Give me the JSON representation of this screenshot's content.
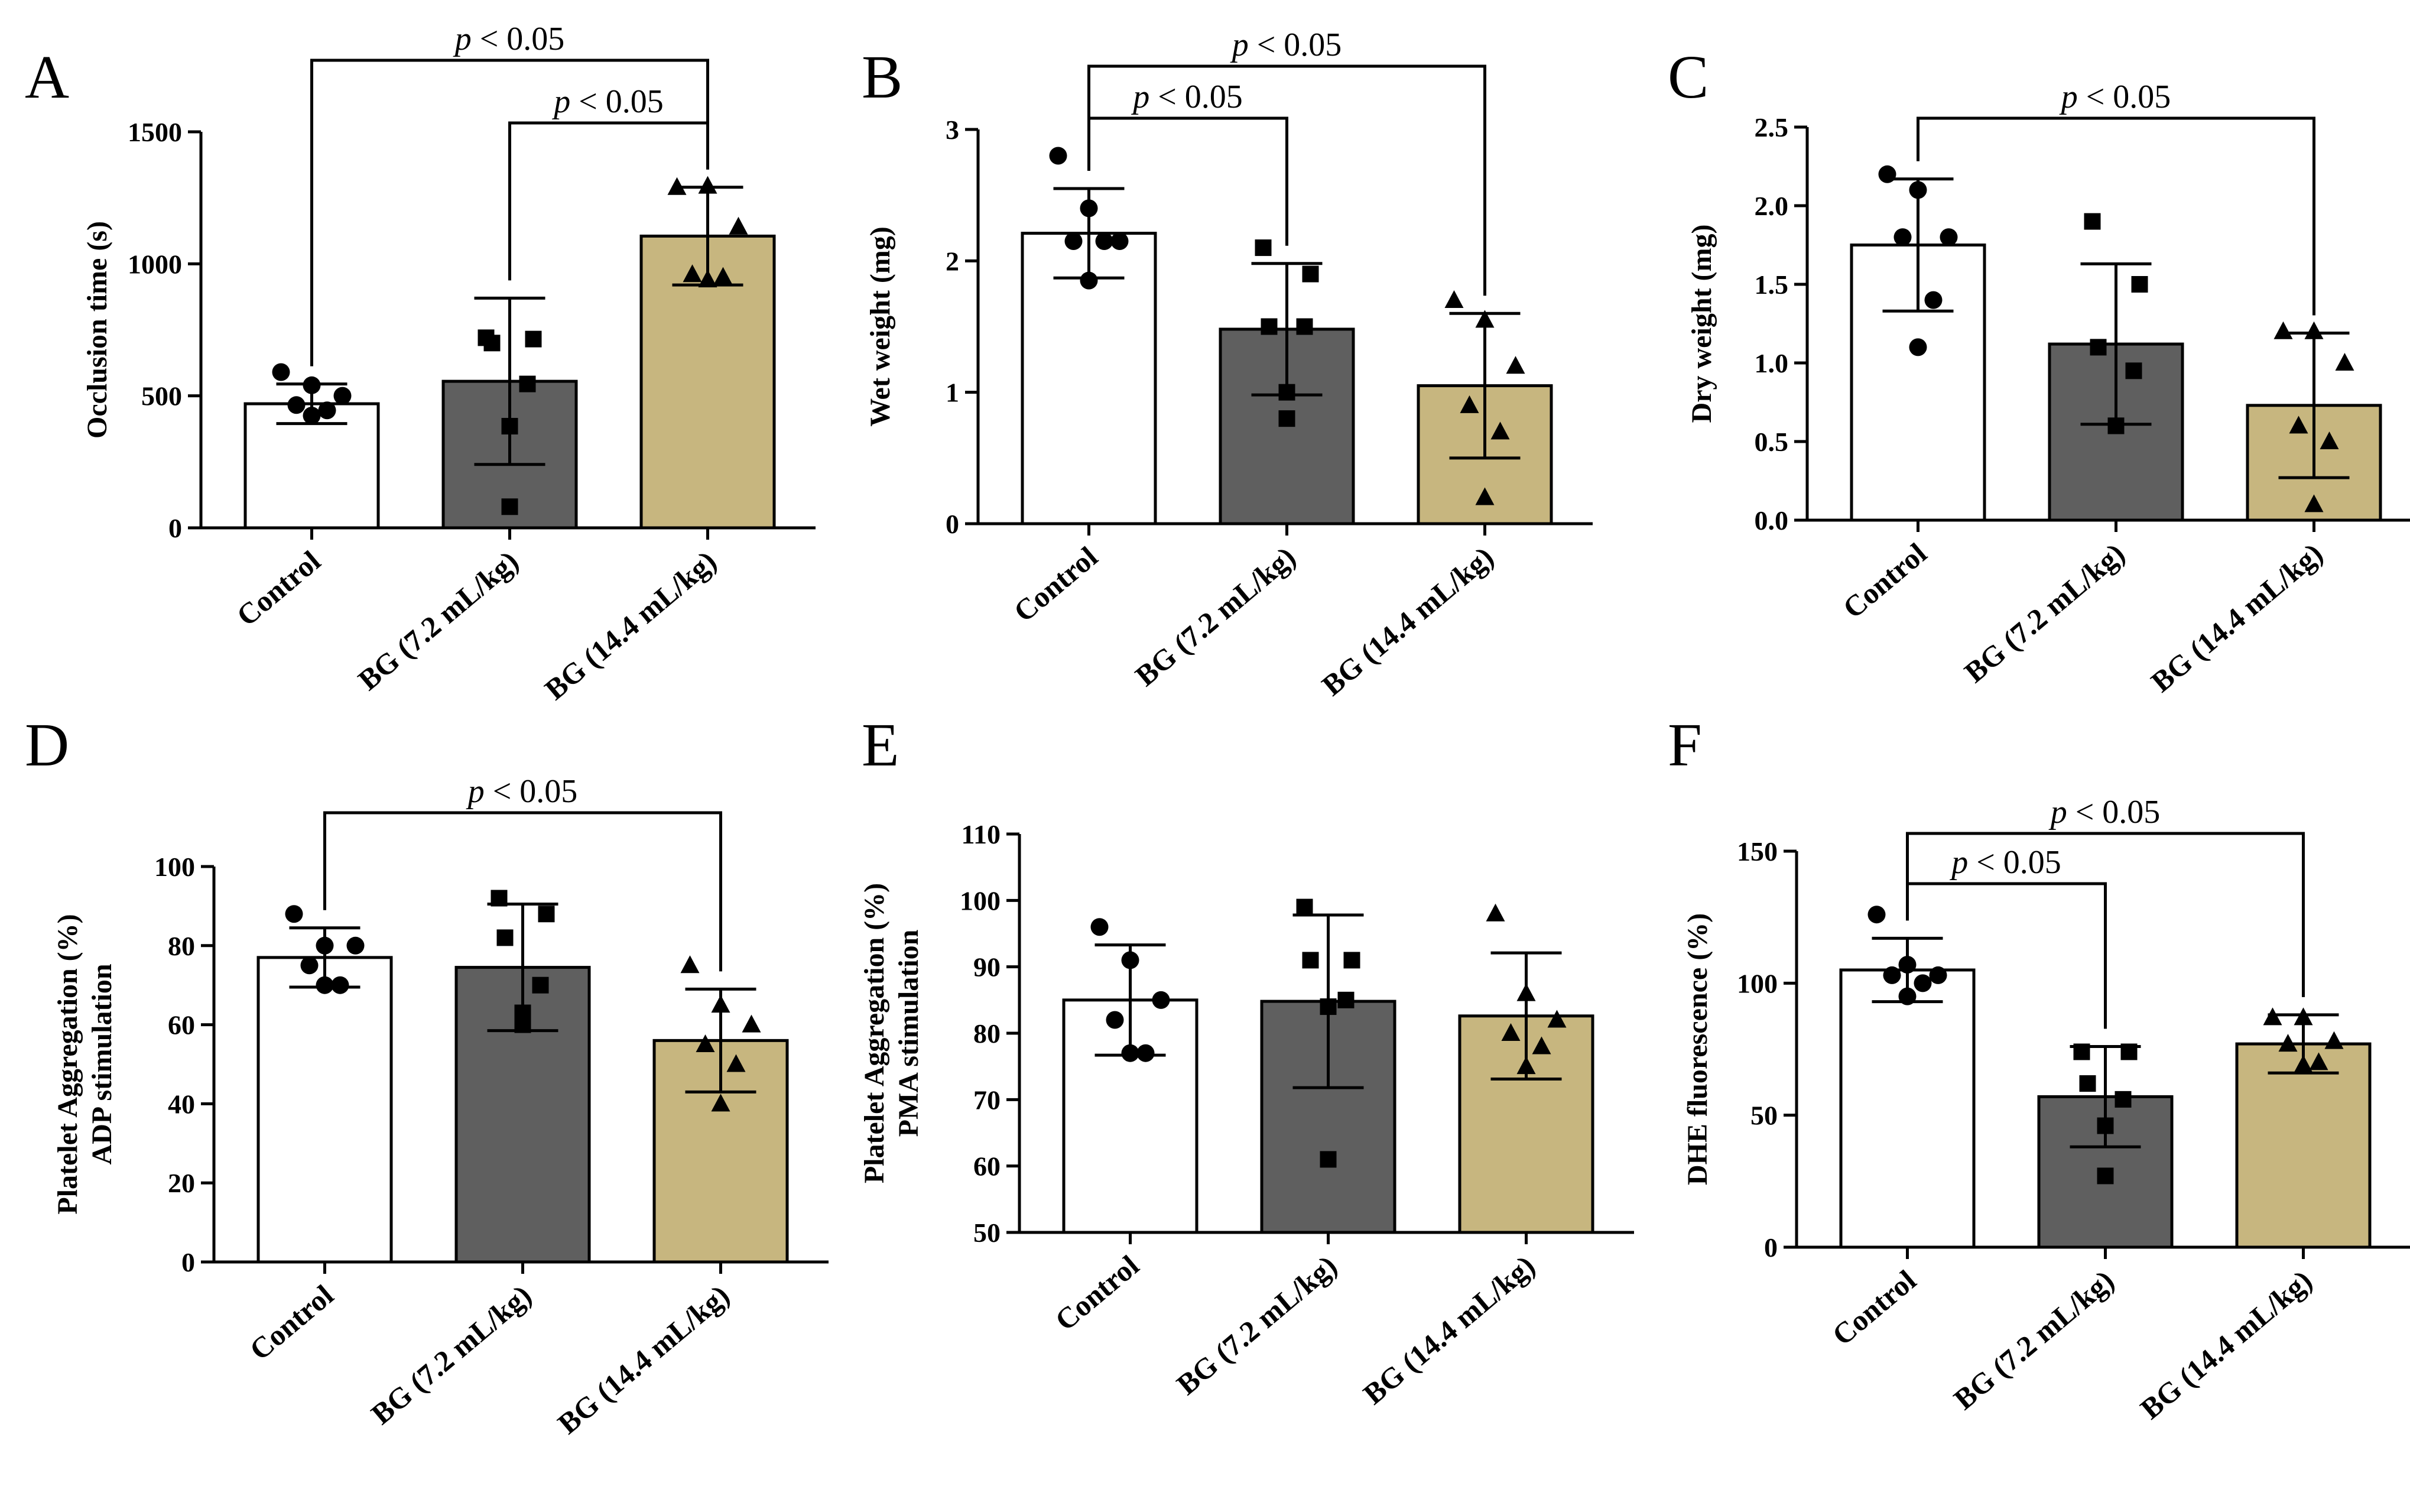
{
  "figure": {
    "colors": {
      "control": "#ffffff",
      "low": "#5f5f5f",
      "high": "#c7b67f",
      "ink": "#000000"
    }
  },
  "chart_data": [
    {
      "type": "bar",
      "panel": "A",
      "title": "",
      "xlabel": "",
      "ylabel": "Occlusion time (s)",
      "ylim": [
        0,
        1500
      ],
      "yticks": [
        0,
        500,
        1000,
        1500
      ],
      "categories": [
        "Control",
        "BG (7.2 mL/kg)",
        "BG (14.4 mL/kg)"
      ],
      "series": [
        {
          "name": "mean",
          "values": [
            470,
            555,
            1105
          ]
        }
      ],
      "sd": [
        75,
        315,
        185
      ],
      "points": [
        [
          590,
          540,
          500,
          465,
          445,
          425
        ],
        [
          720,
          715,
          700,
          545,
          385,
          80
        ],
        [
          1290,
          1295,
          1140,
          960,
          950,
          940
        ]
      ],
      "markers": [
        "circle",
        "square",
        "triangle"
      ],
      "significance": [
        {
          "from": 0,
          "to": 2,
          "label": "p < 0.05"
        },
        {
          "from": 1,
          "to": 2,
          "label": "p < 0.05"
        }
      ]
    },
    {
      "type": "bar",
      "panel": "B",
      "title": "",
      "xlabel": "",
      "ylabel": "Wet weight (mg)",
      "ylim": [
        0,
        3
      ],
      "yticks": [
        0,
        1,
        2,
        3
      ],
      "categories": [
        "Control",
        "BG (7.2 mL/kg)",
        "BG (14.4 mL/kg)"
      ],
      "series": [
        {
          "name": "mean",
          "values": [
            2.21,
            1.48,
            1.05
          ]
        }
      ],
      "sd": [
        0.34,
        0.5,
        0.55
      ],
      "points": [
        [
          2.8,
          2.4,
          2.15,
          2.15,
          2.15,
          1.85
        ],
        [
          2.1,
          1.9,
          1.5,
          1.5,
          1.0,
          0.8
        ],
        [
          1.7,
          1.55,
          1.2,
          0.9,
          0.7,
          0.2
        ]
      ],
      "markers": [
        "circle",
        "square",
        "triangle"
      ],
      "significance": [
        {
          "from": 0,
          "to": 2,
          "label": "p < 0.05"
        },
        {
          "from": 0,
          "to": 1,
          "label": "p < 0.05"
        }
      ]
    },
    {
      "type": "bar",
      "panel": "C",
      "title": "",
      "xlabel": "",
      "ylabel": "Dry weight (mg)",
      "ylim": [
        0,
        2.5
      ],
      "yticks": [
        0.0,
        0.5,
        1.0,
        1.5,
        2.0,
        2.5
      ],
      "categories": [
        "Control",
        "BG (7.2 mL/kg)",
        "BG (14.4 mL/kg)"
      ],
      "series": [
        {
          "name": "mean",
          "values": [
            1.75,
            1.12,
            0.73
          ]
        }
      ],
      "sd": [
        0.42,
        0.51,
        0.46
      ],
      "points": [
        [
          2.2,
          2.1,
          1.8,
          1.8,
          1.4,
          1.1
        ],
        [
          1.9,
          1.5,
          1.1,
          0.95,
          0.6,
          0.6
        ],
        [
          1.2,
          1.2,
          1.0,
          0.6,
          0.5,
          0.1
        ]
      ],
      "markers": [
        "circle",
        "square",
        "triangle"
      ],
      "significance": [
        {
          "from": 0,
          "to": 2,
          "label": "p < 0.05"
        }
      ]
    },
    {
      "type": "bar",
      "panel": "D",
      "title": "",
      "xlabel": "",
      "ylabel": "Platelet Aggregation (%)",
      "ylabel2": "ADP stimulation",
      "ylim": [
        0,
        100
      ],
      "yticks": [
        0,
        20,
        40,
        60,
        80,
        100
      ],
      "categories": [
        "Control",
        "BG (7.2 mL/kg)",
        "BG (14.4 mL/kg)"
      ],
      "series": [
        {
          "name": "mean",
          "values": [
            77,
            74.5,
            56
          ]
        }
      ],
      "sd": [
        7.5,
        16,
        13
      ],
      "points": [
        [
          88,
          80,
          80,
          75,
          70,
          70
        ],
        [
          92,
          88,
          82,
          70,
          63,
          60
        ],
        [
          75,
          65,
          60,
          55,
          50,
          40
        ]
      ],
      "markers": [
        "circle",
        "square",
        "triangle"
      ],
      "significance": [
        {
          "from": 0,
          "to": 2,
          "label": "p < 0.05"
        }
      ]
    },
    {
      "type": "bar",
      "panel": "E",
      "title": "",
      "xlabel": "",
      "ylabel": "Platelet Aggregation (%)",
      "ylabel2": "PMA stimulation",
      "ylim": [
        50,
        110
      ],
      "yticks": [
        50,
        60,
        70,
        80,
        90,
        100,
        110
      ],
      "categories": [
        "Control",
        "BG (7.2 mL/kg)",
        "BG (14.4 mL/kg)"
      ],
      "series": [
        {
          "name": "mean",
          "values": [
            85,
            84.8,
            82.6
          ]
        }
      ],
      "sd": [
        8.3,
        13,
        9.5
      ],
      "points": [
        [
          96,
          91,
          85,
          82,
          77,
          77
        ],
        [
          99,
          91,
          91,
          85,
          84,
          61
        ],
        [
          98,
          86,
          82,
          80,
          78,
          75
        ]
      ],
      "markers": [
        "circle",
        "square",
        "triangle"
      ],
      "significance": []
    },
    {
      "type": "bar",
      "panel": "F",
      "title": "",
      "xlabel": "",
      "ylabel": "DHE fluorescence (%)",
      "ylim": [
        0,
        150
      ],
      "yticks": [
        0,
        50,
        100,
        150
      ],
      "categories": [
        "Control",
        "BG (7.2 mL/kg)",
        "BG (14.4 mL/kg)"
      ],
      "series": [
        {
          "name": "mean",
          "values": [
            105,
            57,
            77
          ]
        }
      ],
      "sd": [
        12,
        19,
        11
      ],
      "points": [
        [
          126,
          107,
          103,
          103,
          100,
          95
        ],
        [
          74,
          74,
          62,
          56,
          46,
          27
        ],
        [
          87,
          87,
          78,
          77,
          70,
          69
        ]
      ],
      "markers": [
        "circle",
        "square",
        "triangle"
      ],
      "significance": [
        {
          "from": 0,
          "to": 2,
          "label": "p < 0.05"
        },
        {
          "from": 0,
          "to": 1,
          "label": "p < 0.05"
        }
      ]
    }
  ]
}
